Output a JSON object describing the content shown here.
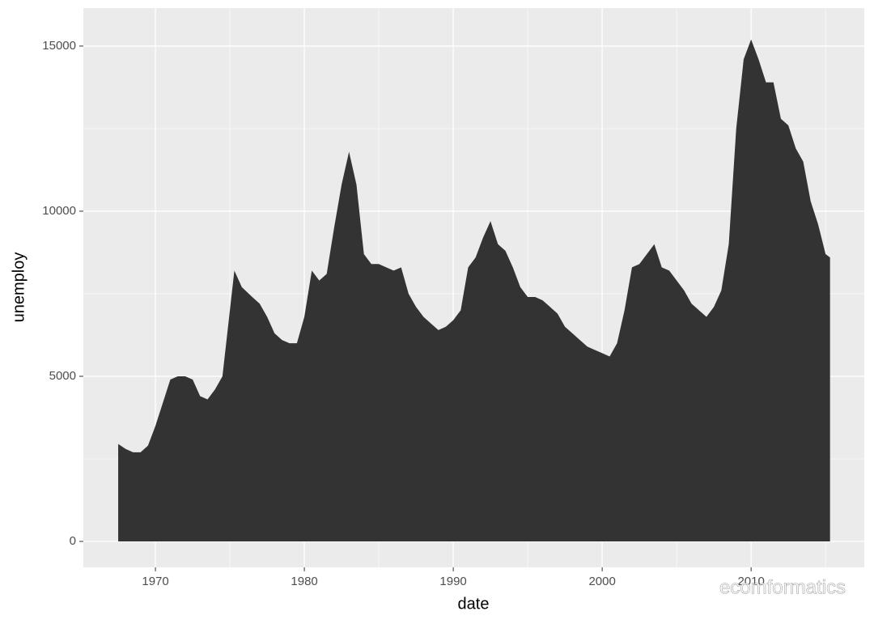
{
  "chart_data": {
    "type": "area",
    "x_label": "date",
    "y_label": "unemploy",
    "watermark": "ecomformatics",
    "color": "#333333",
    "background": "#ebebeb",
    "grid": true,
    "xlim": [
      1965.16,
      2017.6
    ],
    "ylim": [
      -784,
      16150
    ],
    "xticks": [
      1970,
      1980,
      1990,
      2000,
      2010
    ],
    "yticks": [
      0,
      5000,
      10000,
      15000
    ],
    "x": [
      1967.5,
      1968,
      1968.5,
      1969,
      1969.5,
      1970,
      1970.5,
      1971,
      1971.5,
      1972,
      1972.5,
      1973,
      1973.5,
      1974,
      1974.5,
      1975,
      1975.3,
      1975.8,
      1976.5,
      1977,
      1977.5,
      1978,
      1978.5,
      1979,
      1979.5,
      1980,
      1980.5,
      1981,
      1981.5,
      1982,
      1982.5,
      1983,
      1983.5,
      1984,
      1984.5,
      1985,
      1985.5,
      1986,
      1986.5,
      1987,
      1987.5,
      1988,
      1988.5,
      1989,
      1989.5,
      1990,
      1990.5,
      1991,
      1991.5,
      1992,
      1992.5,
      1993,
      1993.5,
      1994,
      1994.5,
      1995,
      1995.5,
      1996,
      1996.5,
      1997,
      1997.5,
      1998,
      1998.5,
      1999,
      1999.5,
      2000,
      2000.5,
      2001,
      2001.5,
      2002,
      2002.5,
      2003,
      2003.5,
      2004,
      2004.5,
      2005,
      2005.5,
      2006,
      2006.5,
      2007,
      2007.5,
      2008,
      2008.5,
      2009,
      2009.5,
      2010,
      2010.5,
      2011,
      2011.5,
      2012,
      2012.5,
      2013,
      2013.5,
      2014,
      2014.5,
      2015,
      2015.3
    ],
    "values": [
      2950,
      2800,
      2700,
      2700,
      2900,
      3500,
      4200,
      4900,
      5000,
      5000,
      4900,
      4400,
      4300,
      4600,
      5000,
      7000,
      8200,
      7700,
      7400,
      7200,
      6800,
      6300,
      6100,
      6000,
      6000,
      6800,
      8200,
      7900,
      8100,
      9500,
      10800,
      11800,
      10800,
      8700,
      8400,
      8400,
      8300,
      8200,
      8300,
      7500,
      7100,
      6800,
      6600,
      6400,
      6500,
      6700,
      7000,
      8300,
      8600,
      9200,
      9700,
      9000,
      8800,
      8300,
      7700,
      7400,
      7400,
      7300,
      7100,
      6900,
      6500,
      6300,
      6100,
      5900,
      5800,
      5700,
      5600,
      6000,
      7000,
      8300,
      8400,
      8700,
      9000,
      8300,
      8200,
      7900,
      7600,
      7200,
      7000,
      6800,
      7100,
      7600,
      9000,
      12500,
      14600,
      15200,
      14600,
      13900,
      13900,
      12800,
      12600,
      11900,
      11500,
      10300,
      9600,
      8700,
      8600
    ]
  }
}
